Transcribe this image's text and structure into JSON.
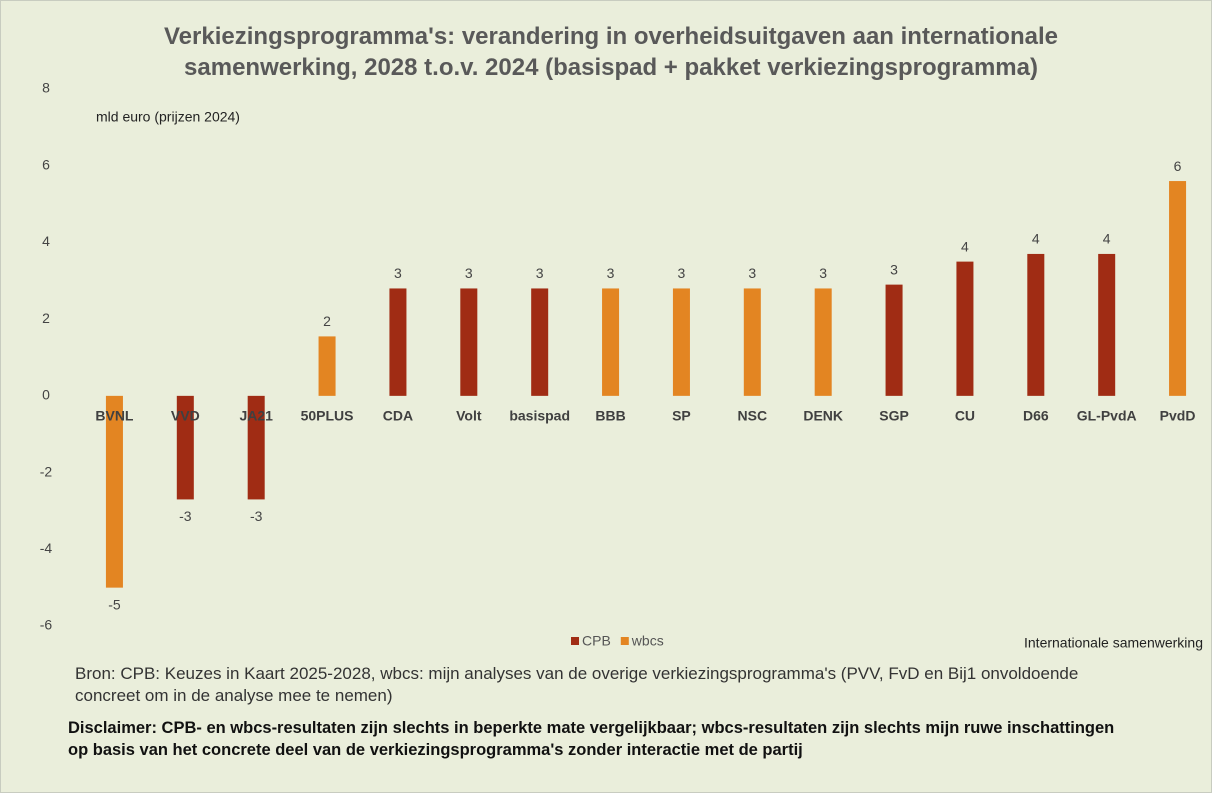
{
  "chart_data": {
    "type": "bar",
    "title": "Verkiezingsprogramma's: verandering in overheidsuitgaven aan internationale samenwerking, 2028 t.o.v. 2024 (basispad + pakket verkiezingsprogramma)",
    "y_label": "mld euro (prijzen 2024)",
    "categories": [
      "BVNL",
      "VVD",
      "JA21",
      "50PLUS",
      "CDA",
      "Volt",
      "basispad",
      "BBB",
      "SP",
      "NSC",
      "DENK",
      "SGP",
      "CU",
      "D66",
      "GL-PvdA",
      "PvdD"
    ],
    "series": [
      {
        "name": "CPB",
        "color": "#a02c14",
        "values": [
          null,
          -2.7,
          -2.7,
          null,
          2.8,
          2.8,
          2.8,
          null,
          null,
          null,
          null,
          2.9,
          3.5,
          3.7,
          3.7,
          null
        ],
        "value_labels": [
          null,
          "-3",
          "-3",
          null,
          "3",
          "3",
          "3",
          null,
          null,
          null,
          null,
          "3",
          "4",
          "4",
          "4",
          null
        ]
      },
      {
        "name": "wbcs",
        "color": "#e38522",
        "values": [
          -5,
          null,
          null,
          1.55,
          null,
          null,
          null,
          2.8,
          2.8,
          2.8,
          2.8,
          null,
          null,
          null,
          null,
          5.6
        ],
        "value_labels": [
          "-5",
          null,
          null,
          "2",
          null,
          null,
          null,
          "3",
          "3",
          "3",
          "3",
          null,
          null,
          null,
          null,
          "6"
        ]
      }
    ],
    "ylim": [
      -6,
      8
    ],
    "yticks": [
      -6,
      -4,
      -2,
      0,
      2,
      4,
      6,
      8
    ],
    "grid": false,
    "legend": "bottom",
    "note": "Internationale samenwerking",
    "source": "Bron: CPB: Keuzes in Kaart 2025-2028, wbcs: mijn analyses van de overige verkiezingsprogramma's (PVV, FvD en Bij1 onvoldoende concreet om in de analyse mee te nemen)",
    "disclaimer": "Disclaimer: CPB- en wbcs-resultaten zijn slechts in beperkte mate vergelijkbaar; wbcs-resultaten zijn slechts mijn ruwe inschattingen op basis van het concrete deel van de verkiezingsprogramma's zonder interactie met de partij"
  }
}
